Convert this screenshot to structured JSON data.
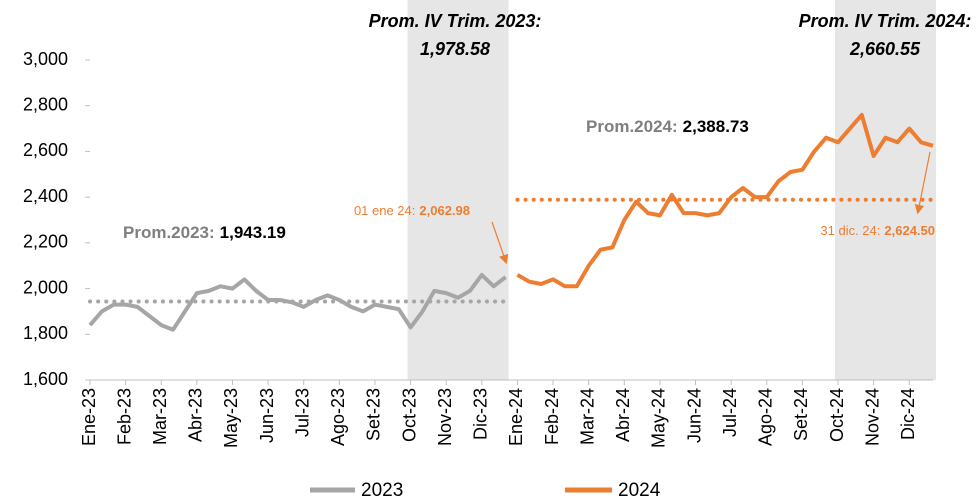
{
  "chart_data": {
    "type": "line",
    "categories": [
      "Ene-23",
      null,
      null,
      "Feb-23",
      null,
      null,
      "Mar-23",
      null,
      null,
      "Abr-23",
      null,
      null,
      "May-23",
      null,
      null,
      "Jun-23",
      null,
      null,
      "Jul-23",
      null,
      null,
      "Ago-23",
      null,
      null,
      "Set-23",
      null,
      null,
      "Oct-23",
      null,
      null,
      "Nov-23",
      null,
      null,
      "Dic-23",
      null,
      null,
      "Ene-24",
      null,
      null,
      "Feb-24",
      null,
      null,
      "Mar-24",
      null,
      null,
      "Abr-24",
      null,
      null,
      "May-24",
      null,
      null,
      "Jun-24",
      null,
      null,
      "Jul-24",
      null,
      null,
      "Ago-24",
      null,
      null,
      "Set-24",
      null,
      null,
      "Oct-24",
      null,
      null,
      "Nov-24",
      null,
      null,
      "Dic-24",
      null,
      null
    ],
    "series": [
      {
        "name": "2023",
        "color": "#a6a6a6",
        "values": [
          1840,
          1900,
          1930,
          1930,
          1920,
          1880,
          1840,
          1820,
          1900,
          1980,
          1990,
          2010,
          2000,
          2040,
          1990,
          1950,
          1950,
          1940,
          1920,
          1950,
          1970,
          1950,
          1920,
          1900,
          1930,
          1920,
          1910,
          1830,
          1900,
          1990,
          1980,
          1960,
          1990,
          2060,
          2010,
          2050,
          null,
          null,
          null,
          null,
          null,
          null,
          null,
          null,
          null,
          null,
          null,
          null,
          null,
          null,
          null,
          null,
          null,
          null,
          null,
          null,
          null,
          null,
          null,
          null,
          null,
          null,
          null,
          null,
          null,
          null,
          null,
          null,
          null,
          null,
          null,
          null
        ]
      },
      {
        "name": "2024",
        "color": "#ed7d31",
        "values": [
          null,
          null,
          null,
          null,
          null,
          null,
          null,
          null,
          null,
          null,
          null,
          null,
          null,
          null,
          null,
          null,
          null,
          null,
          null,
          null,
          null,
          null,
          null,
          null,
          null,
          null,
          null,
          null,
          null,
          null,
          null,
          null,
          null,
          null,
          null,
          null,
          2060,
          2030,
          2020,
          2040,
          2010,
          2010,
          2100,
          2170,
          2180,
          2300,
          2380,
          2330,
          2320,
          2410,
          2330,
          2330,
          2320,
          2330,
          2400,
          2440,
          2400,
          2400,
          2470,
          2510,
          2520,
          2600,
          2660,
          2640,
          2700,
          2760,
          2580,
          2660,
          2640,
          2700,
          2640,
          2624.5
        ]
      }
    ],
    "ylim": [
      1600,
      3000
    ],
    "yticks": [
      {
        "value": 1600,
        "label": "1,600"
      },
      {
        "value": 1800,
        "label": "1,800"
      },
      {
        "value": 2000,
        "label": "2,000"
      },
      {
        "value": 2200,
        "label": "2,200"
      },
      {
        "value": 2400,
        "label": "2,400"
      },
      {
        "value": 2600,
        "label": "2,600"
      },
      {
        "value": 2800,
        "label": "2,800"
      },
      {
        "value": 3000,
        "label": "3,000"
      }
    ],
    "averages": [
      {
        "label": "Prom.2023:",
        "value": 1943.19,
        "value_label": "1,943.19"
      },
      {
        "label": "Prom.2024:",
        "value": 2388.73,
        "value_label": "2,388.73"
      }
    ],
    "quarter_notes": [
      {
        "title": "Prom. IV Trim. 2023:",
        "value_label": "1,978.58"
      },
      {
        "title": "Prom. IV Trim. 2024:",
        "value_label": "2,660.55"
      }
    ],
    "point_notes": [
      {
        "label": "01 ene 24:",
        "value_label": "2,062.98"
      },
      {
        "label": "31 dic. 24:",
        "value_label": "2,624.50"
      }
    ]
  }
}
